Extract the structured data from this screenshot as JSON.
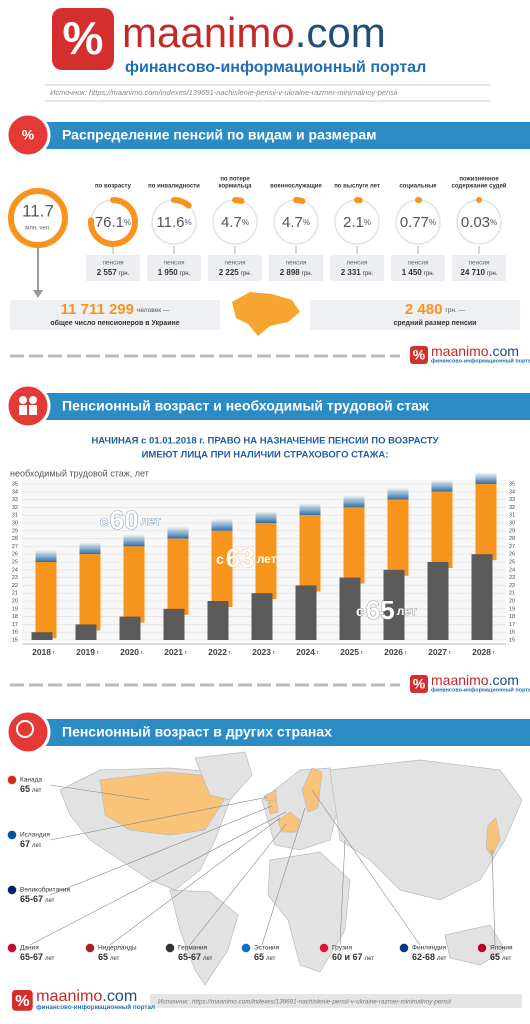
{
  "header": {
    "brand": "maanimo",
    "domain": ".com",
    "tagline": "финансово-информационный портал",
    "source_label": "Источник:",
    "source_url": "https://maanimo.com/indexes/139691-nachislenie-pensii-v-ukraine-razmer-minimalnoy-pensii"
  },
  "section1": {
    "title": "Распределение пенсий по видам и размерам",
    "total_circle": {
      "value": "11.7",
      "unit": "млн. чел."
    },
    "types": [
      {
        "label": [
          "по возрасту"
        ],
        "percent": 76.1,
        "pension": "2 557"
      },
      {
        "label": [
          "по инвалидности"
        ],
        "percent": 11.6,
        "pension": "1 950"
      },
      {
        "label": [
          "по потере",
          "кормильца"
        ],
        "percent": 4.7,
        "pension": "2 225"
      },
      {
        "label": [
          "военнослужащие"
        ],
        "percent": 4.7,
        "pension": "2 898"
      },
      {
        "label": [
          "по выслуге лет"
        ],
        "percent": 2.1,
        "pension": "2 331"
      },
      {
        "label": [
          "социальные"
        ],
        "percent": 0.77,
        "pension": "1 450"
      },
      {
        "label": [
          "пожизненное",
          "содержание судей"
        ],
        "percent": 0.03,
        "pension": "24 710"
      }
    ],
    "percent_sign": "%",
    "pension_label": "пенсия",
    "currency": "грн.",
    "total": {
      "value": "11 711 299",
      "unit": "человек —",
      "caption": "общее число пенсионеров в Украине"
    },
    "average": {
      "value": "2 480",
      "unit": "грн. —",
      "caption": "средний размер пенсии"
    }
  },
  "section2": {
    "title": "Пенсионный возраст и необходимый трудовой стаж",
    "heading": [
      "НАЧИНАЯ с 01.01.2018 г. ПРАВО НА НАЗНАЧЕНИЕ ПЕНСИИ ПО ВОЗРАСТУ",
      "ИМЕЮТ ЛИЦА ПРИ НАЛИЧИИ СТРАХОВОГО СТАЖА:"
    ]
  },
  "chart_data": {
    "type": "bar",
    "y_label": "необходимый трудовой стаж, лет",
    "categories": [
      "2018",
      "2019",
      "2020",
      "2021",
      "2022",
      "2023",
      "2024",
      "2025",
      "2026",
      "2027",
      "2028"
    ],
    "category_unit": "г.",
    "ylim": [
      15,
      35
    ],
    "yticks": [
      15,
      16,
      17,
      18,
      19,
      20,
      21,
      22,
      23,
      24,
      25,
      26,
      27,
      28,
      29,
      30,
      31,
      32,
      33,
      34,
      35
    ],
    "series": [
      {
        "color": "#5b5b5b",
        "values": [
          16,
          17,
          18,
          19,
          20,
          21,
          22,
          23,
          24,
          25,
          26
        ]
      },
      {
        "color": "#f7941d",
        "values": [
          25,
          26,
          27,
          28,
          29,
          30,
          31,
          32,
          33,
          34,
          35
        ]
      }
    ],
    "annotations": [
      {
        "prefix": "с",
        "age": "60",
        "suffix": "лет"
      },
      {
        "prefix": "с",
        "age": "63",
        "suffix": "лет"
      },
      {
        "prefix": "с",
        "age": "65",
        "suffix": "лет"
      }
    ]
  },
  "section3": {
    "title": "Пенсионный возраст в других странах",
    "countries": [
      {
        "name": "Канада",
        "age": "65",
        "unit": "лет"
      },
      {
        "name": "Исландия",
        "age": "67",
        "unit": "лет"
      },
      {
        "name": "Великобритания",
        "age": "65-67",
        "unit": "лет"
      },
      {
        "name": "Дания",
        "age": "65-67",
        "unit": "лет"
      },
      {
        "name": "Нидерланды",
        "age": "65",
        "unit": "лет"
      },
      {
        "name": "Германия",
        "age": "65-67",
        "unit": "лет"
      },
      {
        "name": "Эстония",
        "age": "65",
        "unit": "лет"
      },
      {
        "name": "Грузия",
        "age": "60 и 67",
        "unit": "лет"
      },
      {
        "name": "Финляндия",
        "age": "62-68",
        "unit": "лет"
      },
      {
        "name": "Япония",
        "age": "65",
        "unit": "лет"
      }
    ]
  }
}
